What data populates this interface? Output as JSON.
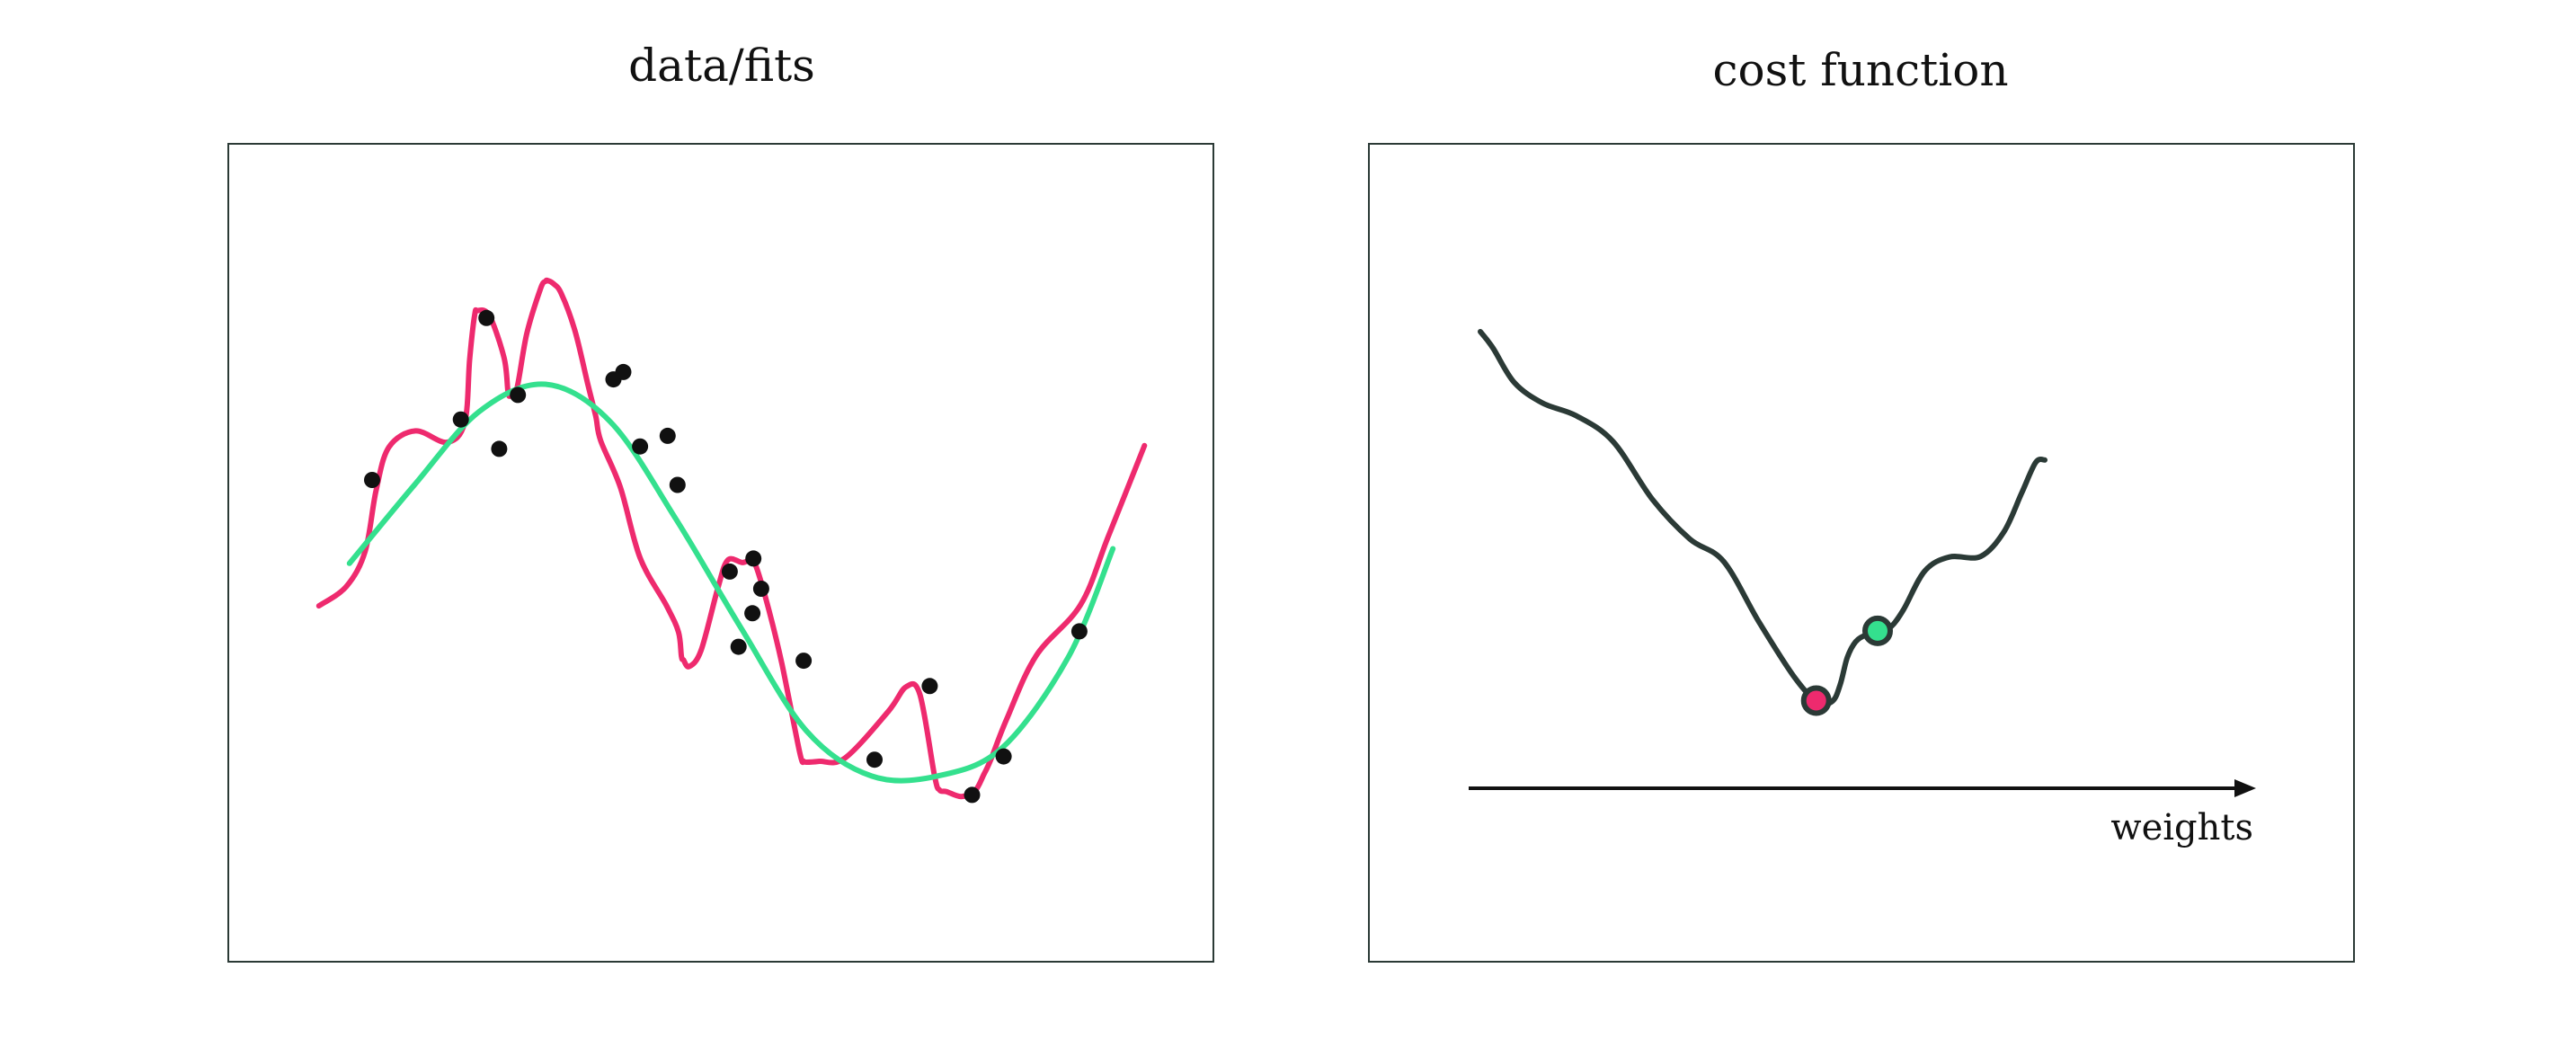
{
  "chart_data": [
    {
      "type": "scatter",
      "title": "data/fits",
      "xlim": [
        0,
        1
      ],
      "ylim": [
        0,
        1
      ],
      "points": [
        [
          0.146,
          0.589
        ],
        [
          0.236,
          0.663
        ],
        [
          0.262,
          0.787
        ],
        [
          0.275,
          0.627
        ],
        [
          0.294,
          0.693
        ],
        [
          0.391,
          0.712
        ],
        [
          0.401,
          0.721
        ],
        [
          0.418,
          0.63
        ],
        [
          0.446,
          0.643
        ],
        [
          0.456,
          0.583
        ],
        [
          0.509,
          0.477
        ],
        [
          0.518,
          0.385
        ],
        [
          0.533,
          0.493
        ],
        [
          0.532,
          0.426
        ],
        [
          0.541,
          0.456
        ],
        [
          0.584,
          0.368
        ],
        [
          0.656,
          0.247
        ],
        [
          0.712,
          0.337
        ],
        [
          0.755,
          0.204
        ],
        [
          0.787,
          0.251
        ],
        [
          0.864,
          0.404
        ]
      ],
      "series": [
        {
          "kind": "overfit",
          "color": "#ee2a6e",
          "x": [
            0.092,
            0.12,
            0.139,
            0.15,
            0.163,
            0.19,
            0.222,
            0.24,
            0.245,
            0.25,
            0.253,
            0.265,
            0.28,
            0.284,
            0.287,
            0.293,
            0.303,
            0.317,
            0.322,
            0.324,
            0.33,
            0.338,
            0.352,
            0.365,
            0.373,
            0.378,
            0.398,
            0.418,
            0.445,
            0.457,
            0.46,
            0.462,
            0.468,
            0.48,
            0.497,
            0.507,
            0.522,
            0.531,
            0.537,
            0.549,
            0.562,
            0.58,
            0.584,
            0.584,
            0.587,
            0.6,
            0.626,
            0.67,
            0.688,
            0.702,
            0.717,
            0.722,
            0.729,
            0.744,
            0.758,
            0.767,
            0.774,
            0.79,
            0.82,
            0.865,
            0.893,
            0.93
          ],
          "y": [
            0.435,
            0.459,
            0.502,
            0.576,
            0.629,
            0.649,
            0.635,
            0.659,
            0.736,
            0.79,
            0.796,
            0.79,
            0.738,
            0.696,
            0.693,
            0.701,
            0.768,
            0.823,
            0.832,
            0.833,
            0.829,
            0.817,
            0.771,
            0.706,
            0.667,
            0.637,
            0.58,
            0.494,
            0.435,
            0.403,
            0.373,
            0.369,
            0.361,
            0.381,
            0.457,
            0.491,
            0.488,
            0.491,
            0.479,
            0.429,
            0.364,
            0.256,
            0.245,
            0.245,
            0.244,
            0.245,
            0.249,
            0.306,
            0.336,
            0.327,
            0.227,
            0.21,
            0.208,
            0.202,
            0.209,
            0.229,
            0.247,
            0.296,
            0.374,
            0.436,
            0.519,
            0.631
          ]
        },
        {
          "kind": "good-fit",
          "color": "#34e08e",
          "x": [
            0.123,
            0.189,
            0.255,
            0.322,
            0.388,
            0.454,
            0.521,
            0.587,
            0.653,
            0.72,
            0.786,
            0.853,
            0.898
          ],
          "y": [
            0.487,
            0.583,
            0.673,
            0.706,
            0.66,
            0.542,
            0.407,
            0.282,
            0.227,
            0.227,
            0.262,
            0.373,
            0.505
          ]
        }
      ],
      "colors": {
        "overfit": "#ee2a6e",
        "good_fit": "#34e08e",
        "points": "#111111",
        "frame": "#2b3a36"
      }
    },
    {
      "type": "line",
      "title": "cost function",
      "xlabel": "weights",
      "xlim": [
        0,
        1
      ],
      "ylim": [
        0,
        1
      ],
      "curve": {
        "color": "#2b3a36",
        "x": [
          0.0,
          0.018,
          0.048,
          0.088,
          0.136,
          0.188,
          0.244,
          0.297,
          0.345,
          0.395,
          0.445,
          0.478,
          0.499,
          0.51,
          0.52,
          0.532,
          0.548,
          0.566,
          0.582,
          0.6,
          0.63,
          0.665,
          0.709,
          0.742,
          0.767,
          0.787,
          0.8
        ],
        "y": [
          1.0,
          0.968,
          0.901,
          0.861,
          0.836,
          0.786,
          0.673,
          0.596,
          0.552,
          0.434,
          0.327,
          0.278,
          0.28,
          0.312,
          0.365,
          0.396,
          0.41,
          0.417,
          0.425,
          0.459,
          0.534,
          0.561,
          0.562,
          0.61,
          0.685,
          0.745,
          0.75
        ]
      },
      "markers": [
        {
          "x": 0.476,
          "y": 0.281,
          "color": "#ee2a6e"
        },
        {
          "x": 0.563,
          "y": 0.417,
          "color": "#34e08e"
        }
      ]
    }
  ]
}
